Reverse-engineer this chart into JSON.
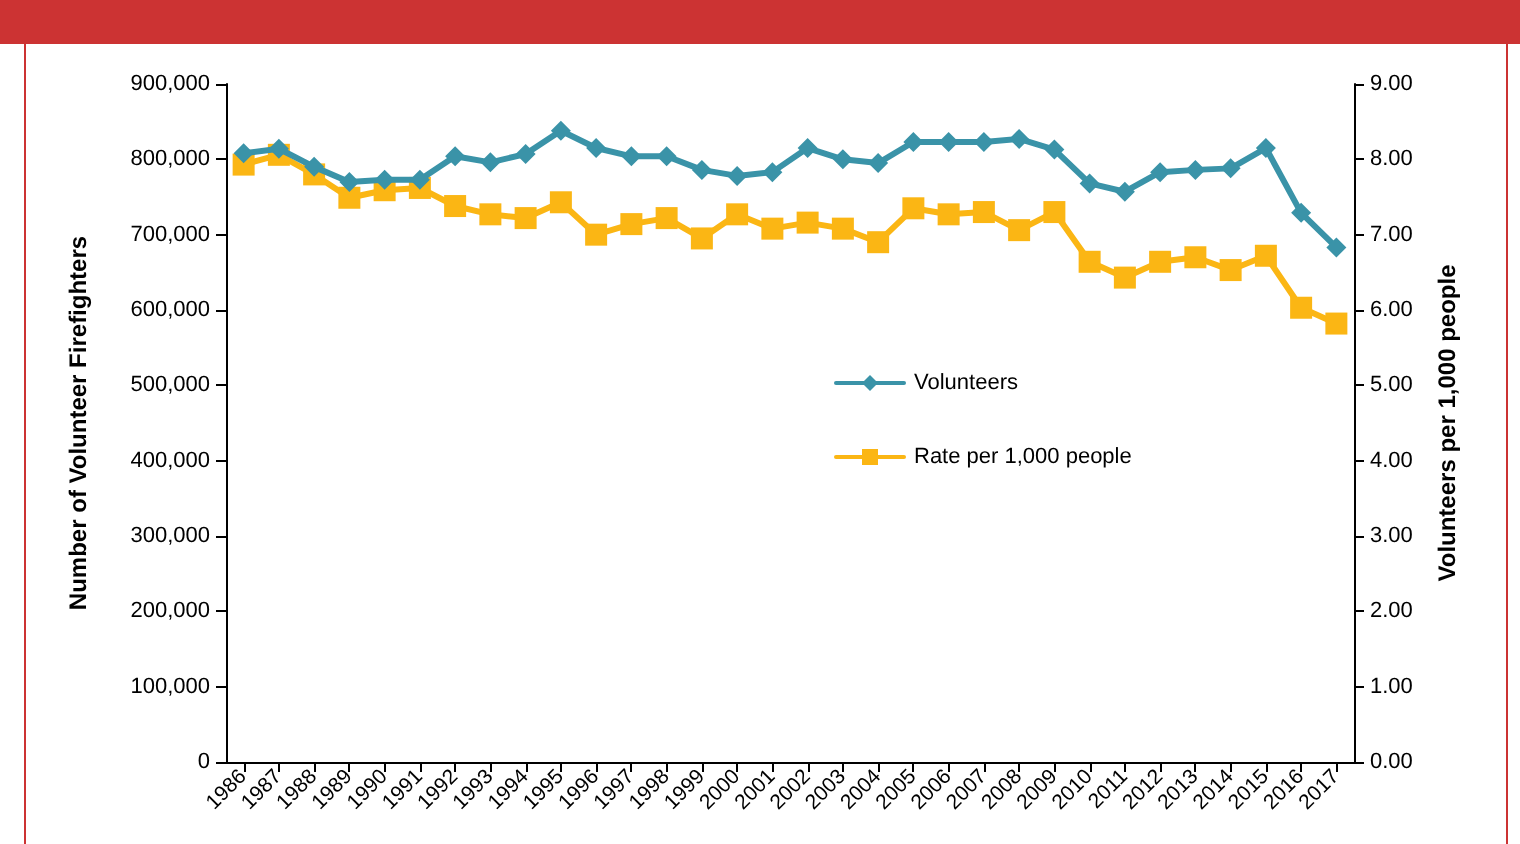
{
  "chart_data": {
    "type": "line",
    "ylabel": "Number of Volunteer Firefighters",
    "y2label": "Volunteers per 1,000 people",
    "categories": [
      "1986",
      "1987",
      "1988",
      "1989",
      "1990",
      "1991",
      "1992",
      "1993",
      "1994",
      "1995",
      "1996",
      "1997",
      "1998",
      "1999",
      "2000",
      "2001",
      "2002",
      "2003",
      "2004",
      "2005",
      "2006",
      "2007",
      "2008",
      "2009",
      "2010",
      "2011",
      "2012",
      "2013",
      "2014",
      "2015",
      "2016",
      "2017"
    ],
    "series": [
      {
        "name": "Volunteers",
        "color": "#3a93a8",
        "marker": "diamond",
        "values": [
          808000,
          814000,
          790000,
          770000,
          773000,
          773000,
          804000,
          796000,
          807000,
          838000,
          815000,
          804000,
          804000,
          786000,
          778000,
          783000,
          815000,
          800000,
          795000,
          823000,
          823000,
          823000,
          827000,
          813000,
          768000,
          757000,
          783000,
          786000,
          788000,
          815000,
          729000,
          683000
        ]
      },
      {
        "name": "Rate per 1,000 people",
        "color": "#fbb614",
        "marker": "square",
        "axis": "y2",
        "values": [
          7.93,
          8.06,
          7.8,
          7.49,
          7.59,
          7.62,
          7.38,
          7.27,
          7.22,
          7.43,
          7.0,
          7.14,
          7.22,
          6.95,
          7.27,
          7.08,
          7.16,
          7.08,
          6.9,
          7.35,
          7.27,
          7.3,
          7.06,
          7.3,
          6.64,
          6.43,
          6.64,
          6.7,
          6.53,
          6.72,
          6.03,
          5.82
        ]
      }
    ],
    "ylim": [
      0,
      900000
    ],
    "yticks": [
      {
        "value": 0,
        "label": "0"
      },
      {
        "value": 100000,
        "label": "100,000"
      },
      {
        "value": 200000,
        "label": "200,000"
      },
      {
        "value": 300000,
        "label": "300,000"
      },
      {
        "value": 400000,
        "label": "400,000"
      },
      {
        "value": 500000,
        "label": "500,000"
      },
      {
        "value": 600000,
        "label": "600,000"
      },
      {
        "value": 700000,
        "label": "700,000"
      },
      {
        "value": 800000,
        "label": "800,000"
      },
      {
        "value": 900000,
        "label": "900,000"
      }
    ],
    "y2lim": [
      0,
      9
    ],
    "y2ticks": [
      {
        "value": 0,
        "label": "0.00"
      },
      {
        "value": 1,
        "label": "1.00"
      },
      {
        "value": 2,
        "label": "2.00"
      },
      {
        "value": 3,
        "label": "3.00"
      },
      {
        "value": 4,
        "label": "4.00"
      },
      {
        "value": 5,
        "label": "5.00"
      },
      {
        "value": 6,
        "label": "6.00"
      },
      {
        "value": 7,
        "label": "7.00"
      },
      {
        "value": 8,
        "label": "8.00"
      },
      {
        "value": 9,
        "label": "9.00"
      }
    ],
    "grid": false,
    "legend": "center",
    "line_style": "solid"
  }
}
